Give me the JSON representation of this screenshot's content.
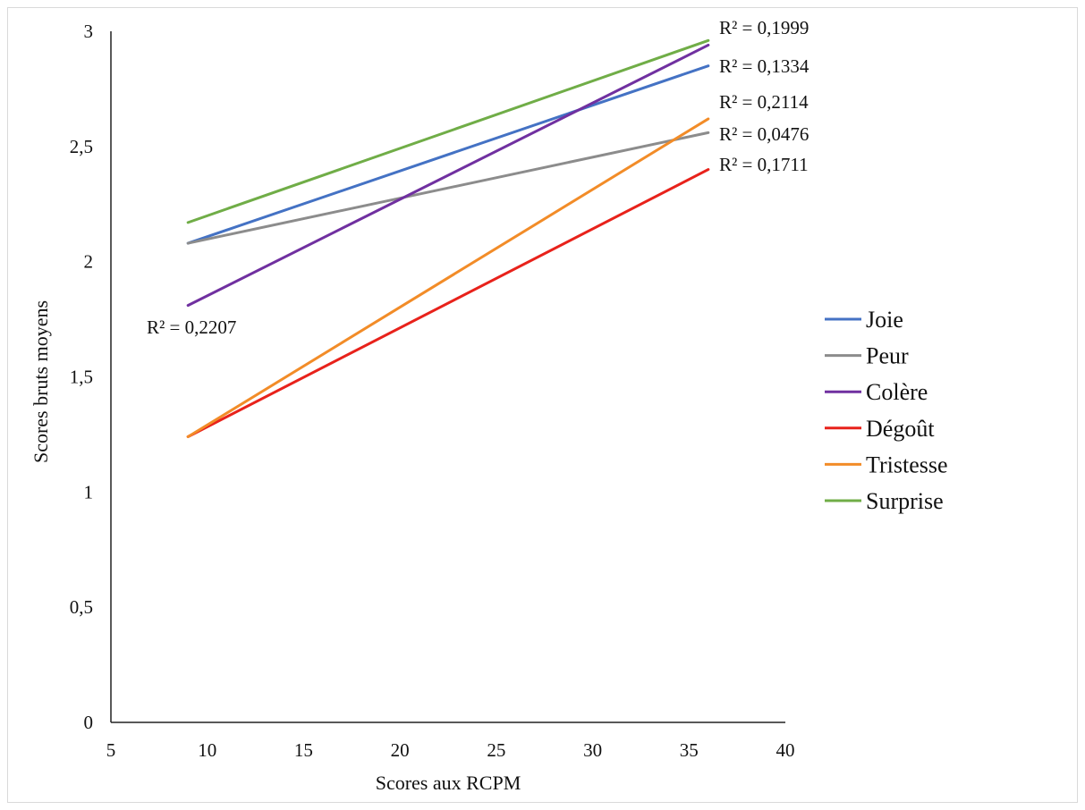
{
  "chart_data": {
    "type": "line",
    "xlabel": "Scores aux RCPM",
    "ylabel": "Scores bruts moyens",
    "xlim": [
      5,
      40
    ],
    "ylim": [
      0,
      3
    ],
    "xticks": [
      "5",
      "10",
      "15",
      "20",
      "25",
      "30",
      "35",
      "40"
    ],
    "yticks": [
      "0",
      "0,5",
      "1",
      "1,5",
      "2",
      "2,5",
      "3"
    ],
    "legend_position": "right",
    "series": [
      {
        "name": "Joie",
        "color": "#4472C4",
        "x": [
          9,
          36
        ],
        "y": [
          2.08,
          2.85
        ],
        "r2": "R² = 0,1334"
      },
      {
        "name": "Peur",
        "color": "#8C8C8C",
        "x": [
          9,
          36
        ],
        "y": [
          2.08,
          2.56
        ],
        "r2": "R² = 0,0476"
      },
      {
        "name": "Colère",
        "color": "#7030A0",
        "x": [
          9,
          36
        ],
        "y": [
          1.81,
          2.94
        ],
        "r2": "R² = 0,2207"
      },
      {
        "name": "Dégoût",
        "color": "#E8221B",
        "x": [
          9,
          36
        ],
        "y": [
          1.24,
          2.4
        ],
        "r2": "R² = 0,1711"
      },
      {
        "name": "Tristesse",
        "color": "#F28C28",
        "x": [
          9,
          36
        ],
        "y": [
          1.24,
          2.62
        ],
        "r2": "R² = 0,2114"
      },
      {
        "name": "Surprise",
        "color": "#70AD47",
        "x": [
          9,
          36
        ],
        "y": [
          2.17,
          2.96
        ],
        "r2": "R² = 0,1999"
      }
    ]
  }
}
